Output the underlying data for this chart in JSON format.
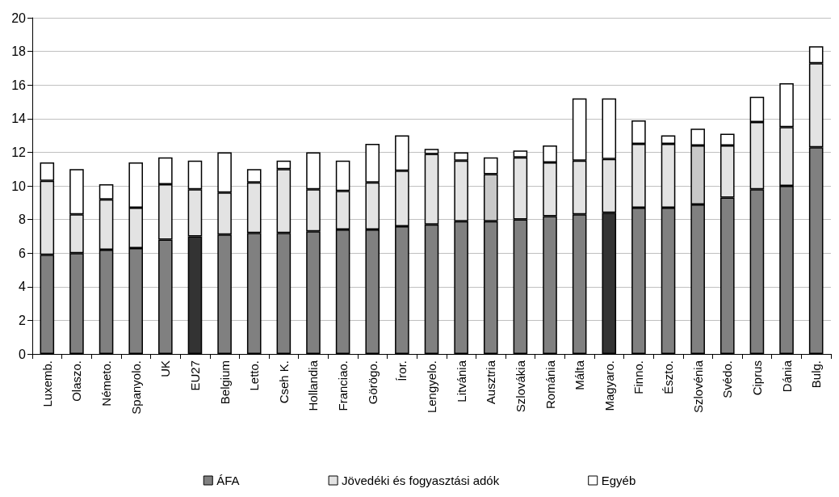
{
  "chart_data": {
    "type": "bar",
    "stacked": true,
    "categories": [
      "Luxemb.",
      "Olaszo.",
      "Németo.",
      "Spanyolo.",
      "UK",
      "EU27",
      "Belgium",
      "Letto.",
      "Cseh K.",
      "Hollandia",
      "Franciao.",
      "Görögo.",
      "Íror.",
      "Lengyelo.",
      "Litvánia",
      "Ausztria",
      "Szlovákia",
      "Románia",
      "Málta",
      "Magyaro.",
      "Finno.",
      "Észto.",
      "Szlovénia",
      "Svédo.",
      "Ciprus",
      "Dánia",
      "Bulg."
    ],
    "series": [
      {
        "name": "ÁFA",
        "color": "#808080",
        "colors": [
          "#808080",
          "#808080",
          "#808080",
          "#808080",
          "#808080",
          "#333333",
          "#808080",
          "#808080",
          "#808080",
          "#808080",
          "#808080",
          "#808080",
          "#808080",
          "#808080",
          "#808080",
          "#808080",
          "#808080",
          "#808080",
          "#808080",
          "#333333",
          "#808080",
          "#808080",
          "#808080",
          "#808080",
          "#808080",
          "#808080",
          "#808080"
        ],
        "values": [
          5.9,
          6.0,
          6.2,
          6.3,
          6.8,
          7.0,
          7.1,
          7.2,
          7.2,
          7.3,
          7.4,
          7.4,
          7.6,
          7.7,
          7.9,
          7.9,
          8.0,
          8.2,
          8.3,
          8.4,
          8.7,
          8.7,
          8.9,
          9.3,
          9.8,
          10.0,
          12.3
        ]
      },
      {
        "name": "Jövedéki és fogyasztási adók",
        "color": "#e3e3e3",
        "colors": [
          "#e3e3e3",
          "#e3e3e3",
          "#e3e3e3",
          "#e3e3e3",
          "#e3e3e3",
          "#e3e3e3",
          "#e3e3e3",
          "#e3e3e3",
          "#e3e3e3",
          "#e3e3e3",
          "#e3e3e3",
          "#e3e3e3",
          "#e3e3e3",
          "#e3e3e3",
          "#e3e3e3",
          "#c8c8c8",
          "#e3e3e3",
          "#e3e3e3",
          "#e3e3e3",
          "#e3e3e3",
          "#e3e3e3",
          "#e3e3e3",
          "#c8c8c8",
          "#e3e3e3",
          "#e3e3e3",
          "#e3e3e3",
          "#e3e3e3"
        ],
        "values": [
          4.4,
          2.3,
          3.0,
          2.4,
          3.3,
          2.8,
          2.5,
          3.0,
          3.8,
          2.5,
          2.3,
          2.8,
          3.3,
          4.2,
          3.6,
          2.8,
          3.7,
          3.2,
          3.2,
          3.2,
          3.8,
          3.8,
          3.5,
          3.1,
          4.0,
          3.5,
          5.0
        ]
      },
      {
        "name": "Egyéb",
        "color": "#ffffff",
        "values": [
          1.1,
          2.7,
          0.9,
          2.7,
          1.6,
          1.7,
          2.4,
          0.8,
          0.5,
          2.2,
          1.8,
          2.3,
          2.1,
          0.3,
          0.5,
          1.0,
          0.4,
          1.0,
          3.7,
          3.6,
          1.4,
          0.5,
          1.0,
          0.7,
          1.5,
          2.6,
          1.0
        ]
      }
    ],
    "ylim": [
      0,
      20
    ],
    "yticks": [
      0,
      2,
      4,
      6,
      8,
      10,
      12,
      14,
      16,
      18,
      20
    ],
    "grid": "y",
    "legend": "bottom"
  }
}
